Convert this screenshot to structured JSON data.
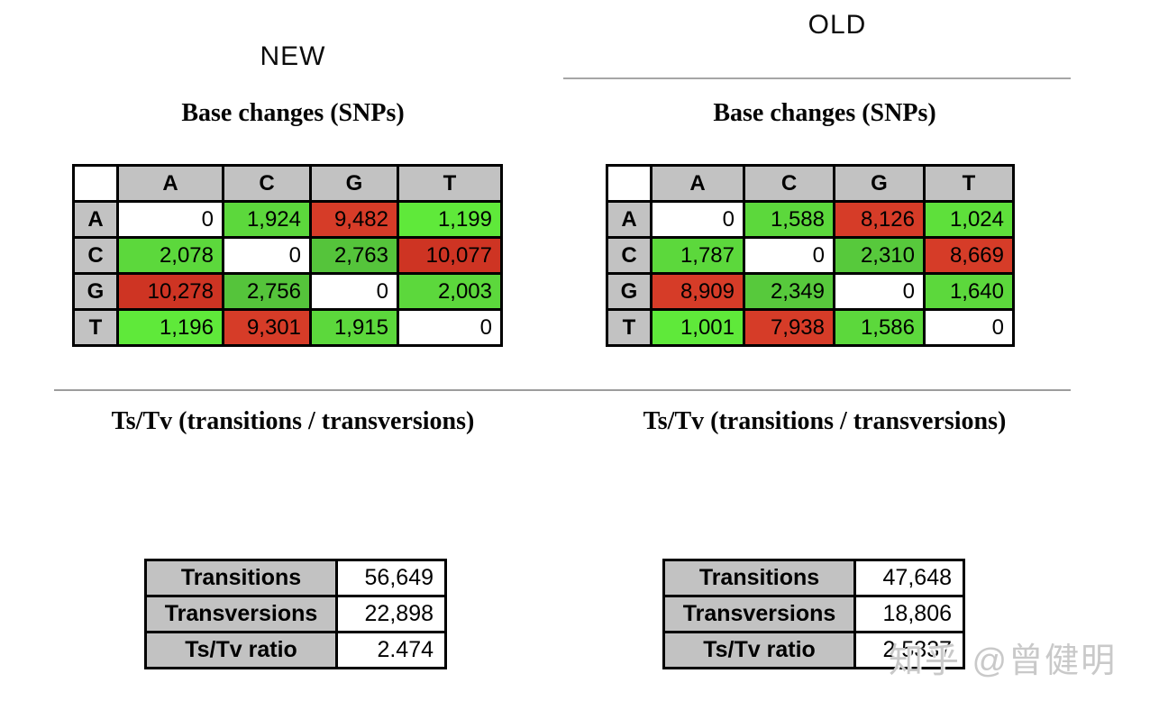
{
  "watermark": {
    "text": "知乎 @曾健明"
  },
  "colors": {
    "header_gray": "#C2C2C2",
    "green_bright": "#5FE93A",
    "green": "#5CD83C",
    "green_dark": "#55C43B",
    "red": "#D63C28",
    "red_dark": "#CE3423",
    "divider_gray": "#A6A6A6"
  },
  "panels": [
    {
      "label": "NEW",
      "matrix_title": "Base changes (SNPs)",
      "tstv_title": "Ts/Tv (transitions / transversions)",
      "matrix": {
        "col_headers": [
          "A",
          "C",
          "G",
          "T"
        ],
        "rows": [
          {
            "label": "A",
            "cells": [
              {
                "value": "0",
                "bg": "#FFFFFF"
              },
              {
                "value": "1,924",
                "bg": "#5CD83C"
              },
              {
                "value": "9,482",
                "bg": "#D63C28"
              },
              {
                "value": "1,199",
                "bg": "#5FE93A"
              }
            ]
          },
          {
            "label": "C",
            "cells": [
              {
                "value": "2,078",
                "bg": "#5CD83C"
              },
              {
                "value": "0",
                "bg": "#FFFFFF"
              },
              {
                "value": "2,763",
                "bg": "#55C43B"
              },
              {
                "value": "10,077",
                "bg": "#CE3423"
              }
            ]
          },
          {
            "label": "G",
            "cells": [
              {
                "value": "10,278",
                "bg": "#CE3423"
              },
              {
                "value": "2,756",
                "bg": "#55C43B"
              },
              {
                "value": "0",
                "bg": "#FFFFFF"
              },
              {
                "value": "2,003",
                "bg": "#5CD83C"
              }
            ]
          },
          {
            "label": "T",
            "cells": [
              {
                "value": "1,196",
                "bg": "#5FE93A"
              },
              {
                "value": "9,301",
                "bg": "#D63C28"
              },
              {
                "value": "1,915",
                "bg": "#5CD83C"
              },
              {
                "value": "0",
                "bg": "#FFFFFF"
              }
            ]
          }
        ]
      },
      "summary": {
        "rows": [
          {
            "label": "Transitions",
            "value": "56,649"
          },
          {
            "label": "Transversions",
            "value": "22,898"
          },
          {
            "label": "Ts/Tv ratio",
            "value": "2.474"
          }
        ]
      }
    },
    {
      "label": "OLD",
      "matrix_title": "Base changes (SNPs)",
      "tstv_title": "Ts/Tv (transitions / transversions)",
      "matrix": {
        "col_headers": [
          "A",
          "C",
          "G",
          "T"
        ],
        "rows": [
          {
            "label": "A",
            "cells": [
              {
                "value": "0",
                "bg": "#FFFFFF"
              },
              {
                "value": "1,588",
                "bg": "#5CD83C"
              },
              {
                "value": "8,126",
                "bg": "#D63C28"
              },
              {
                "value": "1,024",
                "bg": "#5EE03B"
              }
            ]
          },
          {
            "label": "C",
            "cells": [
              {
                "value": "1,787",
                "bg": "#5CD83C"
              },
              {
                "value": "0",
                "bg": "#FFFFFF"
              },
              {
                "value": "2,310",
                "bg": "#57C93C"
              },
              {
                "value": "8,669",
                "bg": "#D63C28"
              }
            ]
          },
          {
            "label": "G",
            "cells": [
              {
                "value": "8,909",
                "bg": "#D63C28"
              },
              {
                "value": "2,349",
                "bg": "#57C93C"
              },
              {
                "value": "0",
                "bg": "#FFFFFF"
              },
              {
                "value": "1,640",
                "bg": "#5CD83C"
              }
            ]
          },
          {
            "label": "T",
            "cells": [
              {
                "value": "1,001",
                "bg": "#5FE93A"
              },
              {
                "value": "7,938",
                "bg": "#D63C28"
              },
              {
                "value": "1,586",
                "bg": "#5CD83C"
              },
              {
                "value": "0",
                "bg": "#FFFFFF"
              }
            ]
          }
        ]
      },
      "summary": {
        "rows": [
          {
            "label": "Transitions",
            "value": "47,648"
          },
          {
            "label": "Transversions",
            "value": "18,806"
          },
          {
            "label": "Ts/Tv ratio",
            "value": "2.5337"
          }
        ]
      }
    }
  ],
  "chart_data": [
    {
      "type": "heatmap",
      "panel": "NEW",
      "title": "Base changes (SNPs)",
      "x_labels": [
        "A",
        "C",
        "G",
        "T"
      ],
      "y_labels": [
        "A",
        "C",
        "G",
        "T"
      ],
      "values": [
        [
          0,
          1924,
          9482,
          1199
        ],
        [
          2078,
          0,
          2763,
          10077
        ],
        [
          10278,
          2756,
          0,
          2003
        ],
        [
          1196,
          9301,
          1915,
          0
        ]
      ],
      "color_rule": "diagonal white; transversions (low counts) green; transitions (high counts) red"
    },
    {
      "type": "table",
      "panel": "NEW",
      "title": "Ts/Tv (transitions / transversions)",
      "rows": [
        [
          "Transitions",
          56649
        ],
        [
          "Transversions",
          22898
        ],
        [
          "Ts/Tv ratio",
          2.474
        ]
      ]
    },
    {
      "type": "heatmap",
      "panel": "OLD",
      "title": "Base changes (SNPs)",
      "x_labels": [
        "A",
        "C",
        "G",
        "T"
      ],
      "y_labels": [
        "A",
        "C",
        "G",
        "T"
      ],
      "values": [
        [
          0,
          1588,
          8126,
          1024
        ],
        [
          1787,
          0,
          2310,
          8669
        ],
        [
          8909,
          2349,
          0,
          1640
        ],
        [
          1001,
          7938,
          1586,
          0
        ]
      ],
      "color_rule": "diagonal white; transversions (low counts) green; transitions (high counts) red"
    },
    {
      "type": "table",
      "panel": "OLD",
      "title": "Ts/Tv (transitions / transversions)",
      "rows": [
        [
          "Transitions",
          47648
        ],
        [
          "Transversions",
          18806
        ],
        [
          "Ts/Tv ratio",
          2.5337
        ]
      ]
    }
  ]
}
